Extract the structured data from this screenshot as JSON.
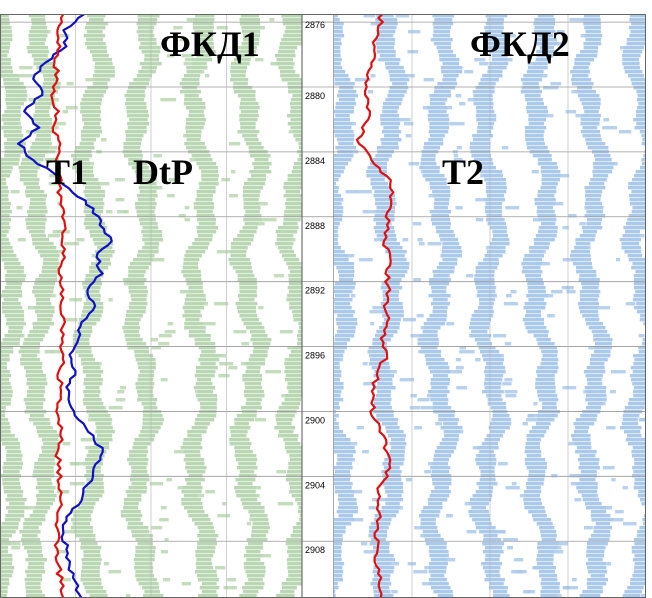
{
  "chart_data": {
    "type": "line",
    "title": "",
    "xlabel": "",
    "ylabel": "",
    "depth_range": [
      2875.5,
      2911.5
    ],
    "depth_ticks": [
      "2876",
      "2880",
      "2884",
      "2888",
      "2892",
      "2896",
      "2900",
      "2904",
      "2908"
    ],
    "panels": [
      {
        "name": "ФКД1",
        "panel_label": "ФКД1",
        "wave_color": "#b9d7b2",
        "curves": [
          {
            "name": "T1",
            "label": "T1",
            "color": "#1010c8",
            "depth": [
              2875.5,
              2876.5,
              2877.5,
              2878.5,
              2879.5,
              2880.5,
              2881.5,
              2882.5,
              2883.5,
              2884.5,
              2885.5,
              2886.5,
              2887.5,
              2888.5,
              2889.5,
              2890.5,
              2891.5,
              2892.5,
              2893.5,
              2894.5,
              2895.5,
              2896.5,
              2897.5,
              2898.5,
              2899.5,
              2900.5,
              2901.5,
              2902.5,
              2903.5,
              2904.5,
              2905.5,
              2906.5,
              2907.5,
              2908.5,
              2909.5,
              2910.5,
              2911.5
            ],
            "value": [
              0.56,
              0.42,
              0.44,
              0.3,
              0.22,
              0.28,
              0.16,
              0.26,
              0.12,
              0.22,
              0.38,
              0.48,
              0.62,
              0.66,
              0.74,
              0.64,
              0.68,
              0.58,
              0.63,
              0.54,
              0.52,
              0.46,
              0.5,
              0.44,
              0.46,
              0.52,
              0.62,
              0.68,
              0.62,
              0.58,
              0.54,
              0.44,
              0.42,
              0.44,
              0.46,
              0.5,
              0.54
            ]
          },
          {
            "name": "DtP",
            "label": "DtP",
            "color": "#e01010",
            "depth": [
              2875.5,
              2876.5,
              2877.5,
              2878.5,
              2879.5,
              2880.5,
              2881.5,
              2882.5,
              2883.5,
              2884.5,
              2885.5,
              2886.5,
              2887.5,
              2888.5,
              2889.5,
              2890.5,
              2891.5,
              2892.5,
              2893.5,
              2894.5,
              2895.5,
              2896.5,
              2897.5,
              2898.5,
              2899.5,
              2900.5,
              2901.5,
              2902.5,
              2903.5,
              2904.5,
              2905.5,
              2906.5,
              2907.5,
              2908.5,
              2909.5,
              2910.5,
              2911.5
            ],
            "value": [
              0.42,
              0.38,
              0.4,
              0.36,
              0.38,
              0.34,
              0.39,
              0.35,
              0.4,
              0.37,
              0.4,
              0.38,
              0.42,
              0.43,
              0.41,
              0.43,
              0.39,
              0.42,
              0.4,
              0.43,
              0.41,
              0.42,
              0.39,
              0.4,
              0.38,
              0.39,
              0.4,
              0.38,
              0.4,
              0.39,
              0.4,
              0.38,
              0.39,
              0.38,
              0.39,
              0.4,
              0.42
            ]
          }
        ]
      },
      {
        "name": "ФКД2",
        "panel_label": "ФКД2",
        "wave_color": "#aac9ec",
        "curves": [
          {
            "name": "T2",
            "label": "T2",
            "color": "#e01010",
            "depth": [
              2875.5,
              2876.5,
              2877.5,
              2878.5,
              2879.5,
              2880.5,
              2881.5,
              2882.5,
              2883.5,
              2884.5,
              2885.5,
              2886.5,
              2887.5,
              2888.5,
              2889.5,
              2890.5,
              2891.5,
              2892.5,
              2893.5,
              2894.5,
              2895.5,
              2896.5,
              2897.5,
              2898.5,
              2899.5,
              2900.5,
              2901.5,
              2902.5,
              2903.5,
              2904.5,
              2905.5,
              2906.5,
              2907.5,
              2908.5,
              2909.5,
              2910.5,
              2911.5
            ],
            "value": [
              0.31,
              0.28,
              0.26,
              0.24,
              0.22,
              0.2,
              0.23,
              0.18,
              0.16,
              0.24,
              0.34,
              0.38,
              0.36,
              0.34,
              0.32,
              0.36,
              0.33,
              0.36,
              0.32,
              0.34,
              0.3,
              0.34,
              0.28,
              0.26,
              0.24,
              0.26,
              0.32,
              0.34,
              0.36,
              0.3,
              0.28,
              0.3,
              0.26,
              0.28,
              0.27,
              0.29,
              0.3
            ]
          }
        ]
      }
    ],
    "grid": true
  }
}
